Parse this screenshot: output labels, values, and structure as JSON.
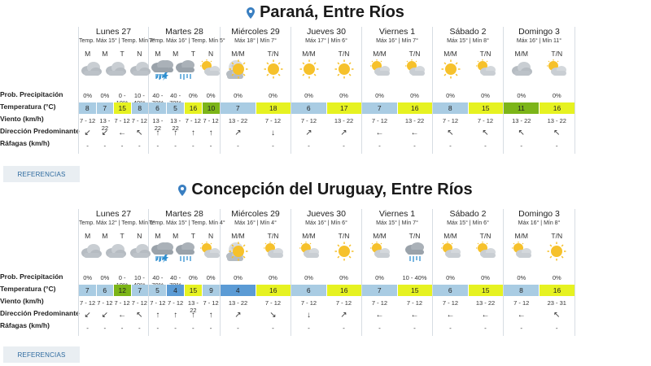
{
  "colors": {
    "cold": "#a9cce3",
    "mild_blue": "#5b9bd5",
    "warm": "#e6f221",
    "green": "#7cb518",
    "accent": "#3a7fc1"
  },
  "row_labels": [
    "Prob. Precipitación",
    "Temperatura (°C)",
    "Viento (km/h)",
    "Dirección Predominante",
    "Ráfagas (km/h)"
  ],
  "cities": [
    {
      "name": "Paraná, Entre Ríos",
      "references_label": "REFERENCIAS",
      "days": [
        {
          "name": "Lunes 27",
          "temps": "Temp. Máx 15° | Temp. Mín 7°",
          "periods": [
            {
              "label": "M",
              "icon": "cloudy-icon",
              "prob": "0%",
              "temp": "8",
              "tc": "cold",
              "wind": "7 - 12",
              "dir": "↙",
              "gust": "-"
            },
            {
              "label": "M",
              "icon": "cloudy-icon",
              "prob": "0%",
              "temp": "7",
              "tc": "cold",
              "wind": "13 - 22",
              "dir": "↙",
              "gust": "-"
            },
            {
              "label": "T",
              "icon": "cloudy-icon",
              "prob": "0 - 10%",
              "temp": "15",
              "tc": "warm",
              "wind": "7 - 12",
              "dir": "←",
              "gust": "-"
            },
            {
              "label": "N",
              "icon": "storm-icon",
              "prob": "10 - 40%",
              "temp": "8",
              "tc": "cold",
              "wind": "7 - 12",
              "dir": "↖",
              "gust": "-"
            }
          ]
        },
        {
          "name": "Martes 28",
          "temps": "Temp. Máx 16° | Temp. Mín 5°",
          "periods": [
            {
              "label": "M",
              "icon": "rain-icon",
              "prob": "40 - 70%",
              "temp": "6",
              "tc": "cold",
              "wind": "13 - 22",
              "dir": "↑",
              "gust": "-"
            },
            {
              "label": "M",
              "icon": "rain-icon",
              "prob": "40 - 70%",
              "temp": "5",
              "tc": "cold",
              "wind": "13 - 22",
              "dir": "↑",
              "gust": "-"
            },
            {
              "label": "T",
              "icon": "partly-cloudy-icon",
              "prob": "0%",
              "temp": "16",
              "tc": "warm",
              "wind": "7 - 12",
              "dir": "↑",
              "gust": "-"
            },
            {
              "label": "N",
              "icon": "moon-cloudy-icon",
              "prob": "0%",
              "temp": "10",
              "tc": "green",
              "wind": "7 - 12",
              "dir": "↑",
              "gust": "-"
            }
          ]
        },
        {
          "name": "Miércoles 29",
          "temps": "Máx 18° | Mín 7°",
          "periods": [
            {
              "label": "M/M",
              "icon": "sun-icon",
              "prob": "0%",
              "temp": "7",
              "tc": "cold",
              "wind": "13 - 22",
              "dir": "↗",
              "gust": "-"
            },
            {
              "label": "T/N",
              "icon": "sun-icon",
              "prob": "0%",
              "temp": "18",
              "tc": "warm",
              "wind": "7 - 12",
              "dir": "↓",
              "gust": "-"
            }
          ]
        },
        {
          "name": "Jueves 30",
          "temps": "Máx 17° | Mín 6°",
          "periods": [
            {
              "label": "M/M",
              "icon": "sun-icon",
              "prob": "0%",
              "temp": "6",
              "tc": "cold",
              "wind": "7 - 12",
              "dir": "↗",
              "gust": "-"
            },
            {
              "label": "T/N",
              "icon": "sun-icon",
              "prob": "0%",
              "temp": "17",
              "tc": "warm",
              "wind": "13 - 22",
              "dir": "↗",
              "gust": "-"
            }
          ]
        },
        {
          "name": "Viernes 1",
          "temps": "Máx 16° | Mín 7°",
          "periods": [
            {
              "label": "M/M",
              "icon": "partly-cloudy-icon",
              "prob": "0%",
              "temp": "7",
              "tc": "cold",
              "wind": "7 - 12",
              "dir": "←",
              "gust": "-"
            },
            {
              "label": "T/N",
              "icon": "partly-cloudy-icon",
              "prob": "0%",
              "temp": "16",
              "tc": "warm",
              "wind": "13 - 22",
              "dir": "←",
              "gust": "-"
            }
          ]
        },
        {
          "name": "Sábado 2",
          "temps": "Máx 15° | Mín 8°",
          "periods": [
            {
              "label": "M/M",
              "icon": "sun-icon",
              "prob": "0%",
              "temp": "8",
              "tc": "cold",
              "wind": "7 - 12",
              "dir": "↖",
              "gust": "-"
            },
            {
              "label": "T/N",
              "icon": "partly-cloudy-icon",
              "prob": "0%",
              "temp": "15",
              "tc": "warm",
              "wind": "7 - 12",
              "dir": "↖",
              "gust": "-"
            }
          ]
        },
        {
          "name": "Domingo 3",
          "temps": "Máx 16° | Mín 11°",
          "periods": [
            {
              "label": "M/M",
              "icon": "cloudy-icon",
              "prob": "0%",
              "temp": "11",
              "tc": "green",
              "wind": "13 - 22",
              "dir": "↖",
              "gust": "-"
            },
            {
              "label": "T/N",
              "icon": "partly-cloudy-icon",
              "prob": "0%",
              "temp": "16",
              "tc": "warm",
              "wind": "13 - 22",
              "dir": "↖",
              "gust": "-"
            }
          ]
        }
      ]
    },
    {
      "name": "Concepción del Uruguay, Entre Ríos",
      "references_label": "REFERENCIAS",
      "days": [
        {
          "name": "Lunes 27",
          "temps": "Temp. Máx 12° | Temp. Mín 6°",
          "periods": [
            {
              "label": "M",
              "icon": "cloudy-icon",
              "prob": "0%",
              "temp": "7",
              "tc": "cold",
              "wind": "7 - 12",
              "dir": "↙",
              "gust": "-"
            },
            {
              "label": "M",
              "icon": "cloudy-icon",
              "prob": "0%",
              "temp": "6",
              "tc": "cold",
              "wind": "7 - 12",
              "dir": "↙",
              "gust": "-"
            },
            {
              "label": "T",
              "icon": "cloudy-icon",
              "prob": "0 - 10%",
              "temp": "12",
              "tc": "green",
              "wind": "7 - 12",
              "dir": "←",
              "gust": "-"
            },
            {
              "label": "N",
              "icon": "storm-icon",
              "prob": "10 - 40%",
              "temp": "7",
              "tc": "cold",
              "wind": "7 - 12",
              "dir": "↖",
              "gust": "-"
            }
          ]
        },
        {
          "name": "Martes 28",
          "temps": "Temp. Máx 15° | Temp. Mín 4°",
          "periods": [
            {
              "label": "M",
              "icon": "rain-icon",
              "prob": "40 - 70%",
              "temp": "5",
              "tc": "cold",
              "wind": "7 - 12",
              "dir": "↑",
              "gust": "-"
            },
            {
              "label": "M",
              "icon": "rain-icon",
              "prob": "40 - 70%",
              "temp": "4",
              "tc": "mild_blue",
              "wind": "7 - 12",
              "dir": "↑",
              "gust": "-"
            },
            {
              "label": "T",
              "icon": "partly-cloudy-icon",
              "prob": "0%",
              "temp": "15",
              "tc": "warm",
              "wind": "13 - 22",
              "dir": "↑",
              "gust": "-"
            },
            {
              "label": "N",
              "icon": "moon-cloudy-icon",
              "prob": "0%",
              "temp": "9",
              "tc": "cold",
              "wind": "7 - 12",
              "dir": "↑",
              "gust": "-"
            }
          ]
        },
        {
          "name": "Miércoles 29",
          "temps": "Máx 16° | Mín 4°",
          "periods": [
            {
              "label": "M/M",
              "icon": "sun-icon",
              "prob": "0%",
              "temp": "4",
              "tc": "mild_blue",
              "wind": "13 - 22",
              "dir": "↗",
              "gust": "-"
            },
            {
              "label": "T/N",
              "icon": "partly-cloudy-icon",
              "prob": "0%",
              "temp": "16",
              "tc": "warm",
              "wind": "7 - 12",
              "dir": "↘",
              "gust": "-"
            }
          ]
        },
        {
          "name": "Jueves 30",
          "temps": "Máx 16° | Mín 6°",
          "periods": [
            {
              "label": "M/M",
              "icon": "partly-cloudy-icon",
              "prob": "0%",
              "temp": "6",
              "tc": "cold",
              "wind": "7 - 12",
              "dir": "↓",
              "gust": "-"
            },
            {
              "label": "T/N",
              "icon": "sun-icon",
              "prob": "0%",
              "temp": "16",
              "tc": "warm",
              "wind": "7 - 12",
              "dir": "↗",
              "gust": "-"
            }
          ]
        },
        {
          "name": "Viernes 1",
          "temps": "Máx 15° | Mín 7°",
          "periods": [
            {
              "label": "M/M",
              "icon": "partly-cloudy-icon",
              "prob": "0%",
              "temp": "7",
              "tc": "cold",
              "wind": "7 - 12",
              "dir": "←",
              "gust": "-"
            },
            {
              "label": "T/N",
              "icon": "rain-icon",
              "prob": "10 - 40%",
              "temp": "15",
              "tc": "warm",
              "wind": "7 - 12",
              "dir": "←",
              "gust": "-"
            }
          ]
        },
        {
          "name": "Sábado 2",
          "temps": "Máx 15° | Mín 6°",
          "periods": [
            {
              "label": "M/M",
              "icon": "partly-cloudy-icon",
              "prob": "0%",
              "temp": "6",
              "tc": "cold",
              "wind": "7 - 12",
              "dir": "←",
              "gust": "-"
            },
            {
              "label": "T/N",
              "icon": "partly-cloudy-icon",
              "prob": "0%",
              "temp": "15",
              "tc": "warm",
              "wind": "13 - 22",
              "dir": "←",
              "gust": "-"
            }
          ]
        },
        {
          "name": "Domingo 3",
          "temps": "Máx 16° | Mín 8°",
          "periods": [
            {
              "label": "M/M",
              "icon": "partly-cloudy-icon",
              "prob": "0%",
              "temp": "8",
              "tc": "cold",
              "wind": "7 - 12",
              "dir": "←",
              "gust": "-"
            },
            {
              "label": "T/N",
              "icon": "sun-icon",
              "prob": "0%",
              "temp": "16",
              "tc": "warm",
              "wind": "23 - 31",
              "dir": "↖",
              "gust": "-"
            }
          ]
        }
      ]
    }
  ]
}
